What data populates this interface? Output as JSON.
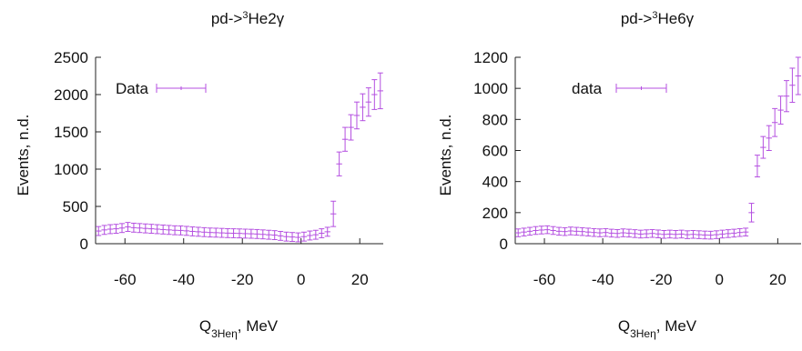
{
  "chart_data": [
    {
      "type": "scatter",
      "title_prefix": "pd->",
      "title_sup": "3",
      "title_suffix": "He2γ",
      "ylabel": "Events, n.d.",
      "xlabel_main": "Q",
      "xlabel_sub": "3Heη",
      "xlabel_tail": ", MeV",
      "xlim": [
        -70,
        28
      ],
      "ylim": [
        0,
        2500
      ],
      "xticks": [
        -60,
        -40,
        -20,
        0,
        20
      ],
      "yticks": [
        0,
        500,
        1000,
        1500,
        2000,
        2500
      ],
      "legend": "top-left",
      "grid": false,
      "color": "#b44fe0",
      "series": [
        {
          "name": "Data",
          "x": [
            -69,
            -67,
            -65,
            -63,
            -61,
            -59,
            -57,
            -55,
            -53,
            -51,
            -49,
            -47,
            -45,
            -43,
            -41,
            -39,
            -37,
            -35,
            -33,
            -31,
            -29,
            -27,
            -25,
            -23,
            -21,
            -19,
            -17,
            -15,
            -13,
            -11,
            -9,
            -7,
            -5,
            -3,
            -1,
            1,
            3,
            5,
            7,
            9,
            11,
            13,
            15,
            17,
            19,
            21,
            23,
            25,
            27
          ],
          "y": [
            170,
            185,
            195,
            200,
            210,
            225,
            215,
            210,
            205,
            200,
            195,
            190,
            185,
            180,
            178,
            172,
            165,
            160,
            155,
            150,
            148,
            145,
            142,
            140,
            138,
            135,
            133,
            130,
            125,
            120,
            115,
            105,
            95,
            90,
            85,
            95,
            110,
            120,
            140,
            160,
            400,
            1070,
            1400,
            1560,
            1720,
            1830,
            1900,
            2000,
            2050
          ],
          "yerr": [
            60,
            60,
            60,
            60,
            60,
            60,
            60,
            60,
            60,
            60,
            60,
            60,
            60,
            60,
            60,
            60,
            60,
            60,
            60,
            60,
            60,
            60,
            60,
            60,
            60,
            60,
            60,
            60,
            60,
            60,
            60,
            60,
            60,
            60,
            60,
            60,
            60,
            60,
            60,
            60,
            170,
            160,
            160,
            170,
            180,
            180,
            190,
            200,
            240
          ],
          "xerr": 1
        }
      ]
    },
    {
      "type": "scatter",
      "title_prefix": "pd->",
      "title_sup": "3",
      "title_suffix": "He6γ",
      "ylabel": "Events, n.d.",
      "xlabel_main": "Q",
      "xlabel_sub": "3Heη",
      "xlabel_tail": ", MeV",
      "xlim": [
        -70,
        28
      ],
      "ylim": [
        0,
        1200
      ],
      "xticks": [
        -60,
        -40,
        -20,
        0,
        20
      ],
      "yticks": [
        0,
        200,
        400,
        600,
        800,
        1000,
        1200
      ],
      "legend": "top-left",
      "grid": false,
      "color": "#b44fe0",
      "series": [
        {
          "name": "data",
          "x": [
            -69,
            -67,
            -65,
            -63,
            -61,
            -59,
            -57,
            -55,
            -53,
            -51,
            -49,
            -47,
            -45,
            -43,
            -41,
            -39,
            -37,
            -35,
            -33,
            -31,
            -29,
            -27,
            -25,
            -23,
            -21,
            -19,
            -17,
            -15,
            -13,
            -11,
            -9,
            -7,
            -5,
            -3,
            -1,
            1,
            3,
            5,
            7,
            9,
            11,
            13,
            15,
            17,
            19,
            21,
            23,
            25,
            27
          ],
          "y": [
            70,
            75,
            80,
            85,
            88,
            90,
            85,
            80,
            78,
            82,
            80,
            78,
            75,
            72,
            70,
            72,
            68,
            66,
            70,
            68,
            65,
            62,
            64,
            66,
            63,
            60,
            62,
            60,
            62,
            58,
            60,
            58,
            56,
            55,
            58,
            62,
            65,
            68,
            72,
            75,
            200,
            500,
            620,
            680,
            780,
            860,
            950,
            1020,
            1080
          ],
          "yerr": [
            25,
            25,
            25,
            25,
            25,
            25,
            25,
            25,
            25,
            25,
            25,
            25,
            25,
            25,
            25,
            25,
            25,
            25,
            25,
            25,
            25,
            25,
            25,
            25,
            25,
            25,
            25,
            25,
            25,
            25,
            25,
            25,
            25,
            25,
            25,
            25,
            25,
            25,
            25,
            25,
            60,
            70,
            70,
            80,
            90,
            90,
            100,
            110,
            120
          ],
          "xerr": 1
        }
      ]
    }
  ]
}
